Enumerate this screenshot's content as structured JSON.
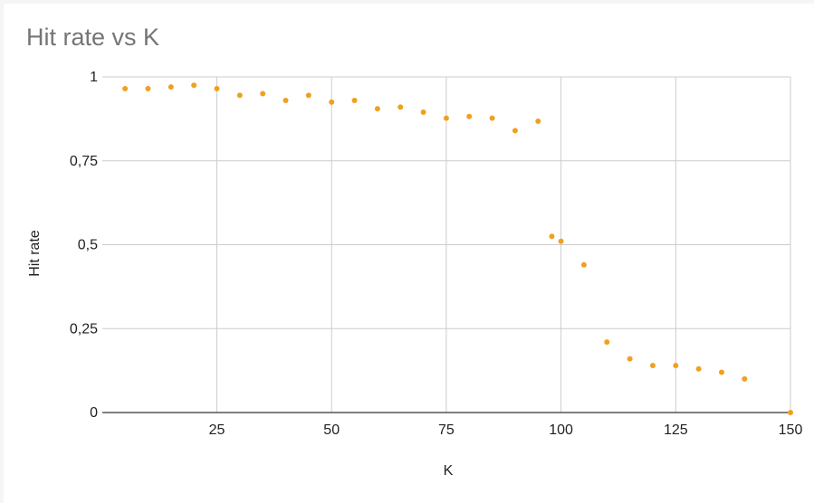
{
  "colors": {
    "series": "#f0a020",
    "grid": "#cccccc",
    "axis": "#333333",
    "title": "#757575"
  },
  "chart_data": {
    "type": "scatter",
    "title": "Hit rate vs K",
    "xlabel": "K",
    "ylabel": "Hit rate",
    "xlim": [
      0,
      150
    ],
    "ylim": [
      0,
      1
    ],
    "x_ticks": [
      25,
      50,
      75,
      100,
      125,
      150
    ],
    "x_tick_labels": [
      "25",
      "50",
      "75",
      "100",
      "125",
      "150"
    ],
    "y_ticks": [
      0,
      0.25,
      0.5,
      0.75,
      1
    ],
    "y_tick_labels": [
      "0",
      "0,25",
      "0,5",
      "0,75",
      "1"
    ],
    "grid": true,
    "legend": "none",
    "series": [
      {
        "x": [
          5,
          10,
          15,
          20,
          25,
          30,
          35,
          40,
          45,
          50,
          55,
          60,
          65,
          70,
          75,
          80,
          85,
          90,
          95,
          98,
          100,
          105,
          110,
          115,
          120,
          125,
          130,
          135,
          140,
          150
        ],
        "y": [
          0.965,
          0.965,
          0.97,
          0.975,
          0.965,
          0.945,
          0.95,
          0.93,
          0.945,
          0.925,
          0.93,
          0.905,
          0.91,
          0.895,
          0.877,
          0.882,
          0.877,
          0.84,
          0.868,
          0.525,
          0.51,
          0.44,
          0.21,
          0.16,
          0.14,
          0.14,
          0.13,
          0.12,
          0.1,
          0.0
        ]
      }
    ]
  }
}
